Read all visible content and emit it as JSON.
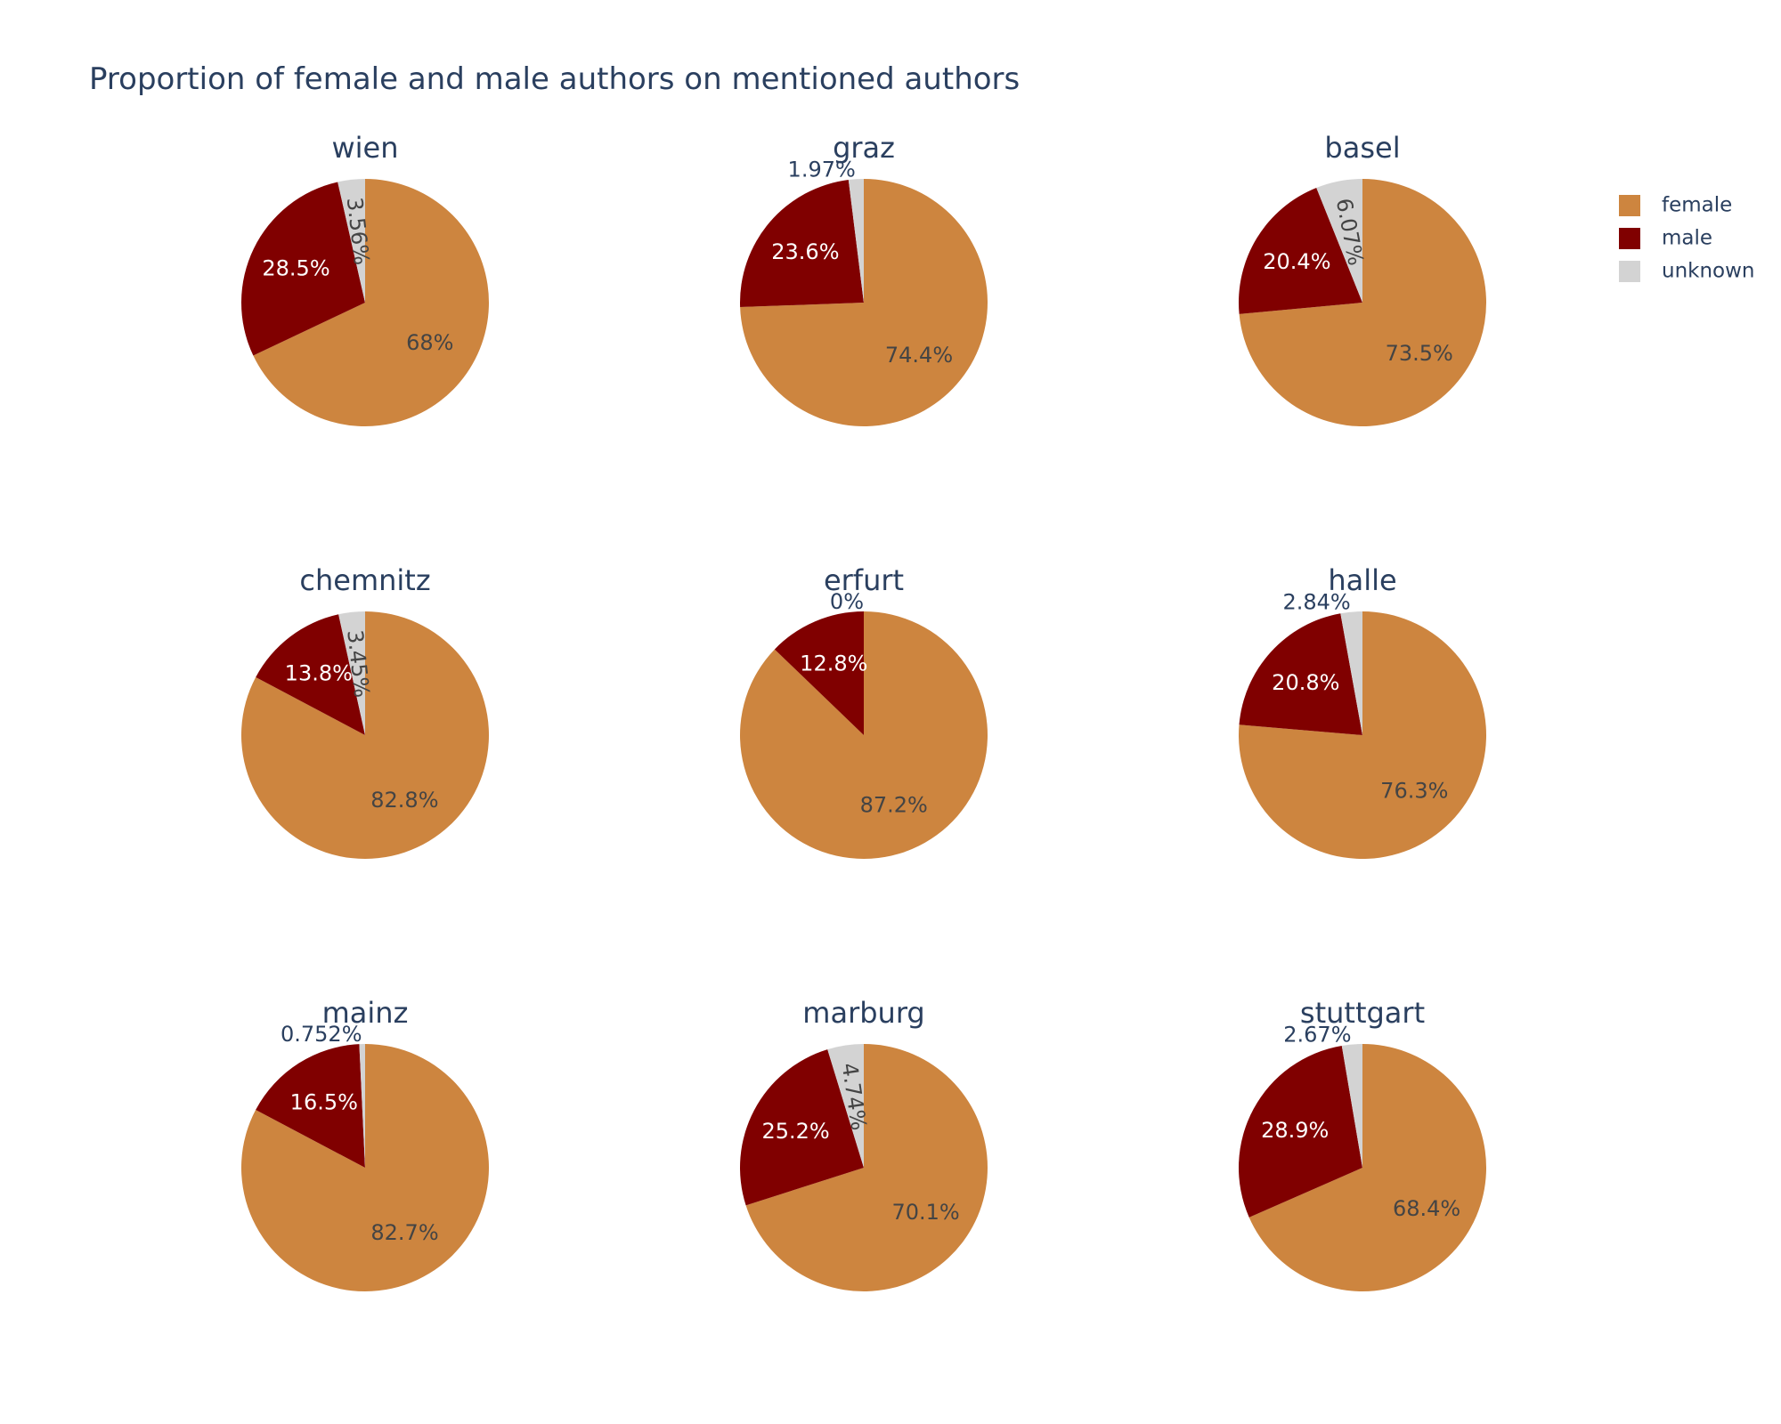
{
  "chart_data": {
    "type": "pie",
    "title": "Proportion of female and male authors on mentioned authors",
    "legend": {
      "position": "top-right",
      "entries": [
        {
          "label": "female",
          "color": "#cd853f"
        },
        {
          "label": "male",
          "color": "#800000"
        },
        {
          "label": "unknown",
          "color": "#d3d3d3"
        }
      ]
    },
    "pies": [
      {
        "name": "wien",
        "values": [
          68,
          28.5,
          3.56
        ],
        "labels": [
          "68%",
          "28.5%",
          "3.56%"
        ]
      },
      {
        "name": "graz",
        "values": [
          74.4,
          23.6,
          1.97
        ],
        "labels": [
          "74.4%",
          "23.6%",
          "1.97%"
        ]
      },
      {
        "name": "basel",
        "values": [
          73.5,
          20.4,
          6.07
        ],
        "labels": [
          "73.5%",
          "20.4%",
          "6.07%"
        ]
      },
      {
        "name": "chemnitz",
        "values": [
          82.8,
          13.8,
          3.45
        ],
        "labels": [
          "82.8%",
          "13.8%",
          "3.45%"
        ]
      },
      {
        "name": "erfurt",
        "values": [
          87.2,
          12.8,
          0
        ],
        "labels": [
          "87.2%",
          "12.8%",
          "0%"
        ]
      },
      {
        "name": "halle",
        "values": [
          76.3,
          20.8,
          2.84
        ],
        "labels": [
          "76.3%",
          "20.8%",
          "2.84%"
        ]
      },
      {
        "name": "mainz",
        "values": [
          82.7,
          16.5,
          0.752
        ],
        "labels": [
          "82.7%",
          "16.5%",
          "0.752%"
        ]
      },
      {
        "name": "marburg",
        "values": [
          70.1,
          25.2,
          4.74
        ],
        "labels": [
          "70.1%",
          "25.2%",
          "4.74%"
        ]
      },
      {
        "name": "stuttgart",
        "values": [
          68.4,
          28.9,
          2.67
        ],
        "labels": [
          "68.4%",
          "28.9%",
          "2.67%"
        ]
      }
    ]
  }
}
